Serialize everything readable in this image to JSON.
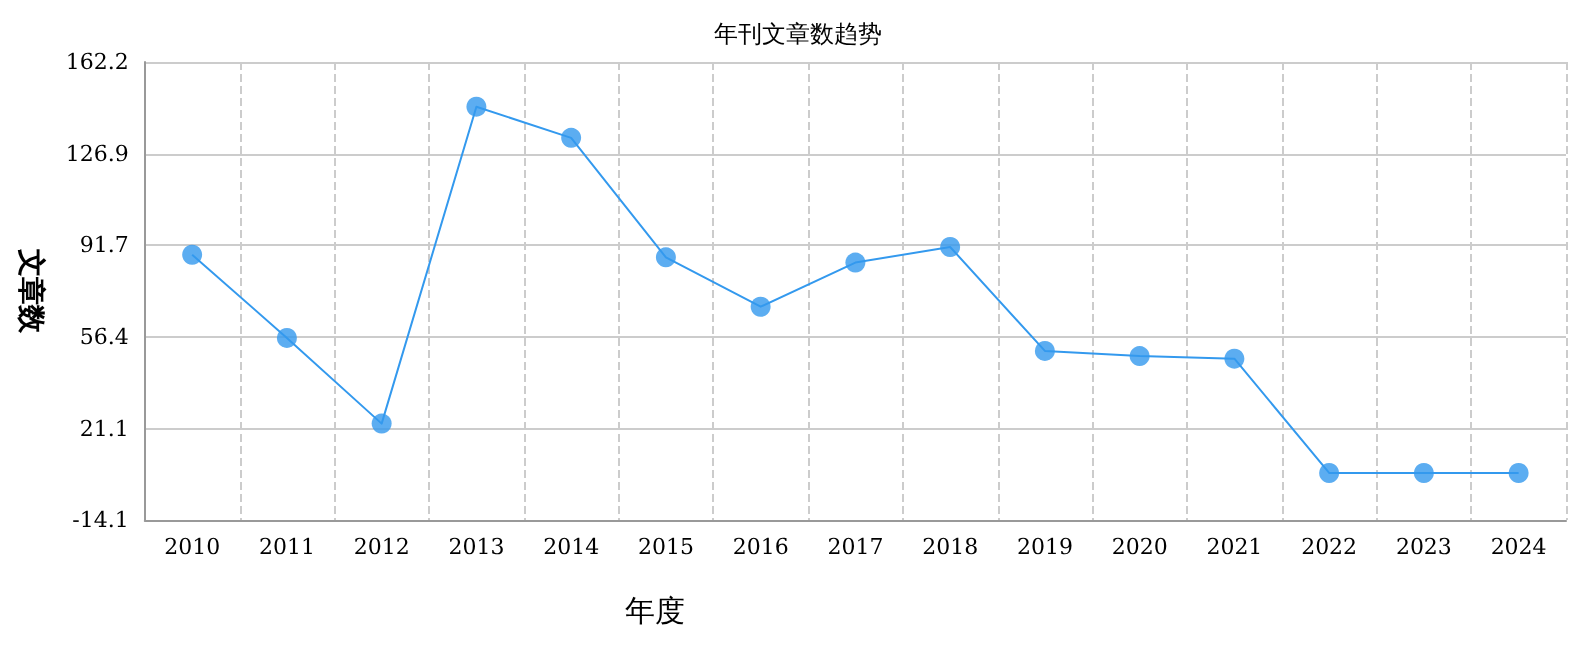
{
  "chart_data": {
    "type": "line",
    "title": "年刊文章数趋势",
    "xlabel": "年度",
    "ylabel": "文章数",
    "categories": [
      "2010",
      "2011",
      "2012",
      "2013",
      "2014",
      "2015",
      "2016",
      "2017",
      "2018",
      "2019",
      "2020",
      "2021",
      "2022",
      "2023",
      "2024"
    ],
    "series": [
      {
        "color": "#3399ee",
        "values": [
          88,
          56,
          23,
          145,
          133,
          87,
          68,
          85,
          91,
          51,
          49,
          48,
          4,
          4,
          4
        ]
      }
    ],
    "ylim": [
      -14.1,
      162.2
    ],
    "yticks": [
      -14.1,
      21.1,
      56.4,
      91.7,
      126.9,
      162.2
    ],
    "grid": true,
    "marker": "circle",
    "line_style": "solid"
  }
}
